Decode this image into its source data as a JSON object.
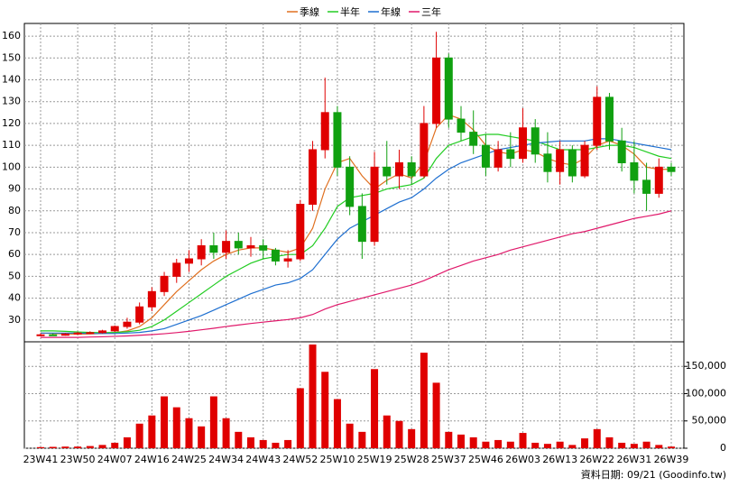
{
  "chart_data": [
    {
      "type": "candlestick",
      "categories": [
        "23W41",
        null,
        null,
        "23W50",
        null,
        null,
        "24W07",
        null,
        null,
        "24W16",
        null,
        null,
        "24W25",
        null,
        null,
        "24W34",
        null,
        null,
        "24W43",
        null,
        null,
        "24W52",
        null,
        null,
        "25W10",
        null,
        null,
        "25W19",
        null,
        null,
        "25W28",
        null,
        null,
        "25W37",
        null,
        null,
        "25W46",
        null,
        null,
        "26W03",
        null,
        null,
        "26W13",
        null,
        null,
        "26W22",
        null,
        null,
        "26W31",
        null,
        null,
        "26W39"
      ],
      "open": [
        23,
        23.2,
        23,
        23.6,
        24,
        24.2,
        25,
        27,
        29,
        36,
        43,
        50,
        56,
        58,
        64,
        61,
        66,
        63,
        64,
        62,
        57,
        58,
        83,
        108,
        125,
        100,
        82,
        66,
        100,
        96,
        102,
        96,
        120,
        150,
        122,
        116,
        110,
        100,
        108,
        104,
        118,
        106,
        98,
        108,
        96,
        110,
        132,
        112,
        102,
        94,
        88,
        100
      ],
      "high": [
        24,
        23.8,
        24,
        24.5,
        24.8,
        25.5,
        27.5,
        31,
        38,
        45,
        52,
        58,
        62,
        67,
        70,
        71,
        70,
        68,
        67,
        63,
        62,
        85,
        112,
        141,
        128,
        105,
        88,
        107,
        112,
        108,
        105,
        128,
        162,
        152,
        128,
        126,
        115,
        112,
        116,
        127,
        122,
        116,
        112,
        110,
        112,
        137,
        134,
        118,
        112,
        102,
        104,
        102
      ],
      "low": [
        22.5,
        22.8,
        22.8,
        23.2,
        23.5,
        23.8,
        24.5,
        26,
        28,
        34,
        41,
        47,
        52,
        55,
        58,
        58,
        60,
        59,
        58,
        55,
        54,
        57,
        80,
        104,
        96,
        78,
        58,
        64,
        92,
        90,
        92,
        95,
        118,
        118,
        112,
        106,
        96,
        98,
        100,
        102,
        102,
        93,
        92,
        93,
        95,
        108,
        108,
        98,
        88,
        80,
        86,
        96
      ],
      "close": [
        23.2,
        23,
        23.6,
        24,
        24.2,
        25,
        27,
        29,
        36,
        43,
        50,
        56,
        58,
        64,
        61,
        66,
        63,
        64,
        62,
        57,
        58,
        83,
        108,
        125,
        100,
        82,
        66,
        100,
        96,
        102,
        96,
        120,
        150,
        122,
        116,
        110,
        100,
        108,
        104,
        118,
        106,
        98,
        108,
        96,
        110,
        132,
        112,
        102,
        94,
        88,
        100,
        98
      ],
      "up_color": "#e00000",
      "down_color": "#10a010",
      "series": [
        {
          "name": "季線",
          "color": "#e07020",
          "values": [
            24,
            23.8,
            23.6,
            23.5,
            23.6,
            23.8,
            24.2,
            25,
            27,
            31,
            37,
            43,
            48,
            53,
            57,
            60,
            62,
            63,
            63,
            62,
            61,
            63,
            72,
            90,
            102,
            104,
            96,
            90,
            94,
            97,
            95,
            102,
            118,
            124,
            122,
            117,
            110,
            107,
            106,
            108,
            107,
            104,
            102,
            101,
            104,
            110,
            112,
            110,
            106,
            100,
            99,
            99
          ]
        },
        {
          "name": "半年",
          "color": "#22cc22",
          "values": [
            25,
            25,
            24.8,
            24.5,
            24.3,
            24.2,
            24.3,
            24.6,
            25.3,
            27,
            30,
            34,
            38,
            42,
            46,
            50,
            53,
            56,
            58,
            59,
            60,
            60,
            64,
            72,
            82,
            86,
            87,
            88,
            90,
            91,
            92,
            95,
            104,
            110,
            112,
            114,
            115,
            115,
            114,
            113,
            112,
            110,
            108,
            108,
            108,
            109,
            110,
            110,
            109,
            107,
            105,
            104
          ]
        },
        {
          "name": "年線",
          "color": "#1e6fd0",
          "values": [
            24,
            24,
            24,
            24,
            23.8,
            23.8,
            23.8,
            24,
            24.3,
            25,
            26,
            28,
            30,
            32,
            34.5,
            37,
            39.5,
            42,
            44,
            46,
            47,
            49,
            53,
            60,
            67,
            72,
            75,
            78,
            81,
            84,
            86,
            90,
            95,
            99,
            102,
            104,
            106,
            108,
            109,
            110,
            111,
            111.5,
            112,
            112,
            112,
            113,
            113,
            112,
            111,
            110,
            109,
            108
          ]
        },
        {
          "name": "三年",
          "color": "#e0186a",
          "values": [
            22,
            22,
            22,
            22,
            22.2,
            22.3,
            22.5,
            22.7,
            23,
            23.3,
            23.7,
            24.2,
            24.8,
            25.5,
            26.2,
            27,
            27.7,
            28.4,
            29,
            29.6,
            30.2,
            31,
            32.5,
            35,
            37,
            38.5,
            40,
            41.5,
            43,
            44.5,
            46,
            48,
            50.5,
            53,
            55,
            57,
            58.5,
            60,
            62,
            63.5,
            65,
            66.5,
            68,
            69.5,
            70.5,
            72,
            73.5,
            75,
            76.5,
            77.5,
            78.5,
            80
          ]
        }
      ],
      "ylim": [
        20,
        165
      ],
      "yticks": [
        30,
        40,
        50,
        60,
        70,
        80,
        90,
        100,
        110,
        120,
        130,
        140,
        150,
        160
      ],
      "grid": true
    },
    {
      "type": "bar",
      "color": "#e00000",
      "values": [
        2000,
        2500,
        3000,
        3000,
        4000,
        6000,
        10000,
        20000,
        45000,
        60000,
        95000,
        75000,
        55000,
        40000,
        95000,
        55000,
        30000,
        20000,
        15000,
        10000,
        15000,
        110000,
        190000,
        140000,
        90000,
        45000,
        30000,
        145000,
        60000,
        50000,
        35000,
        175000,
        120000,
        30000,
        25000,
        20000,
        12000,
        15000,
        12000,
        28000,
        10000,
        8000,
        12000,
        6000,
        18000,
        35000,
        20000,
        10000,
        8000,
        12000,
        6000,
        3000
      ],
      "ylim": [
        0,
        195000
      ],
      "yticks": [
        0,
        {
          "value": 50000,
          "label": "50,000"
        },
        {
          "value": 100000,
          "label": "100,000"
        },
        {
          "value": 150000,
          "label": "150,000"
        }
      ],
      "grid": true
    }
  ],
  "footer": "資料日期: 09/21  (Goodinfo.tw)"
}
